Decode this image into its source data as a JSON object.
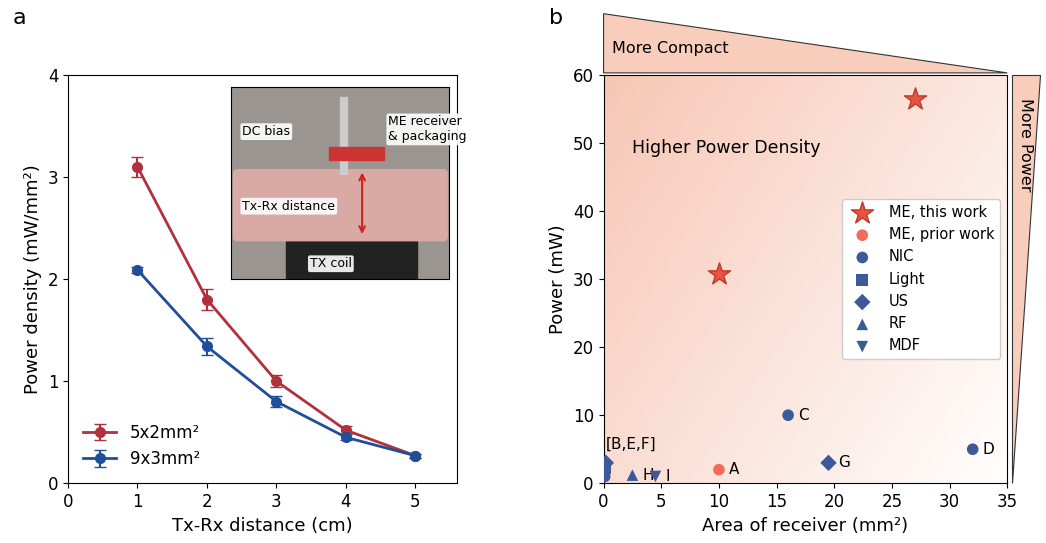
{
  "chart_data": [
    {
      "type": "line",
      "panel_label": "a",
      "xlabel": "Tx-Rx distance (cm)",
      "ylabel": "Power density (mW/mm²)",
      "xlim": [
        0,
        5.6
      ],
      "xticks": [
        0,
        1,
        2,
        3,
        4,
        5
      ],
      "ylim": [
        0,
        4
      ],
      "yticks": [
        0,
        1,
        2,
        3,
        4
      ],
      "legend": "lower left",
      "marker": "circle",
      "series": [
        {
          "name": "5x2mm²",
          "color": "#b2303b",
          "x": [
            1,
            2,
            3,
            4,
            5
          ],
          "values": [
            3.1,
            1.8,
            1.0,
            0.52,
            0.27
          ],
          "error": [
            0.1,
            0.1,
            0.06,
            0.04,
            0.02
          ]
        },
        {
          "name": "9x3mm²",
          "color": "#1f4e9a",
          "x": [
            1,
            2,
            3,
            4,
            5
          ],
          "values": [
            2.09,
            1.34,
            0.8,
            0.45,
            0.27
          ],
          "error": [
            0.03,
            0.08,
            0.05,
            0.03,
            0.02
          ]
        }
      ],
      "inset_labels": {
        "bias": "DC bias",
        "receiver": "ME receiver\n& packaging",
        "distance": "Tx-Rx distance",
        "coil": "TX coil"
      }
    },
    {
      "type": "scatter",
      "panel_label": "b",
      "xlabel": "Area of receiver (mm²)",
      "ylabel": "Power (mW)",
      "xlim": [
        0,
        35
      ],
      "xticks": [
        0,
        5,
        10,
        15,
        20,
        25,
        30,
        35
      ],
      "ylim": [
        0,
        60
      ],
      "yticks": [
        0,
        10,
        20,
        30,
        40,
        50,
        60
      ],
      "legend": "center right",
      "annotations": {
        "top": "More Compact",
        "inside": "Higher Power Density",
        "right": "More Power"
      },
      "series": [
        {
          "name": "ME, this work",
          "color": "#e8533f",
          "marker": "star",
          "x": [
            10,
            27
          ],
          "values": [
            30.8,
            56.5
          ],
          "labels": [
            null,
            null
          ]
        },
        {
          "name": "ME, prior work",
          "color": "#f26b5b",
          "marker": "circle",
          "x": [
            10
          ],
          "values": [
            2.0
          ],
          "labels": [
            "A"
          ]
        },
        {
          "name": "NIC",
          "color": "#3c5a9a",
          "marker": "circle",
          "x": [
            16,
            32,
            0.1
          ],
          "values": [
            10.0,
            5.0,
            1.0
          ],
          "labels": [
            "C",
            "D",
            null
          ]
        },
        {
          "name": "Light",
          "color": "#3c5a9a",
          "marker": "square",
          "x": [
            0.1
          ],
          "values": [
            2.2
          ],
          "labels": [
            null
          ]
        },
        {
          "name": "US",
          "color": "#3c5a9a",
          "marker": "diamond",
          "x": [
            0.2,
            19.5
          ],
          "values": [
            3.0,
            3.0
          ],
          "labels": [
            "[B,E,F]",
            "G"
          ]
        },
        {
          "name": "RF",
          "color": "#3c5a9a",
          "marker": "triangle",
          "x": [
            2.5
          ],
          "values": [
            1.2
          ],
          "labels": [
            "H"
          ]
        },
        {
          "name": "MDF",
          "color": "#3c5a9a",
          "marker": "triangle_down",
          "x": [
            4.5
          ],
          "values": [
            1.0
          ],
          "labels": [
            "I"
          ]
        }
      ]
    }
  ]
}
